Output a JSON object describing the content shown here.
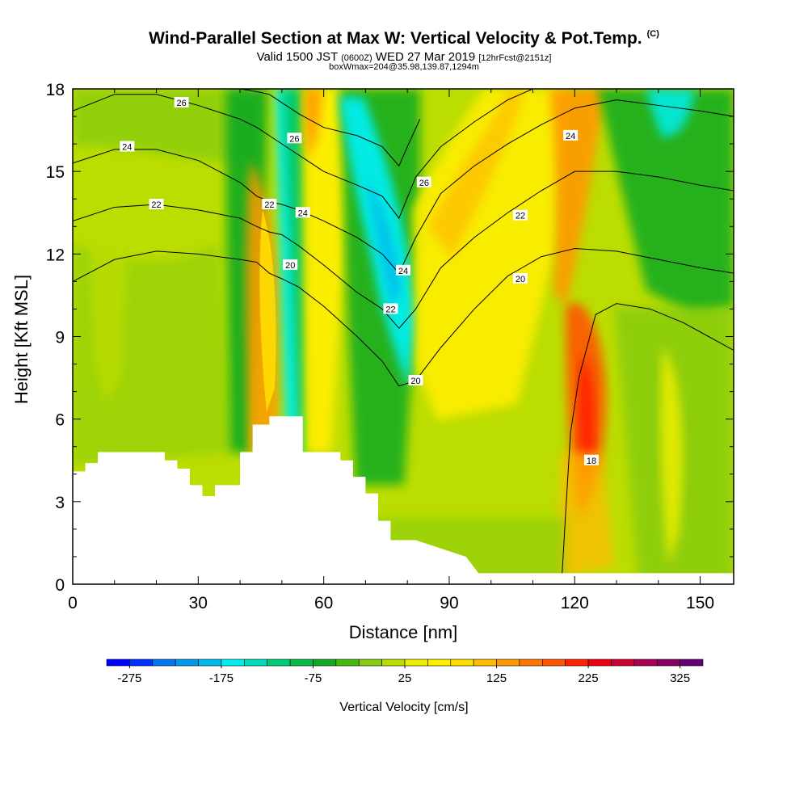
{
  "header": {
    "title": "Wind-Parallel Section at Max W: Vertical Velocity & Pot.Temp.",
    "copyright": "(C)",
    "valid_a": "Valid 1500 JST",
    "valid_z": "(0600Z)",
    "valid_b": "WED 27 Mar 2019",
    "forecast": "[12hrFcst@2151z]",
    "box_info": "boxWmax=204@35.98,139.87,1294m"
  },
  "chart_data": {
    "type": "heatmap",
    "xlabel": "Distance [nm]",
    "ylabel": "Height [Kft MSL]",
    "xlim": [
      0,
      158
    ],
    "ylim": [
      0,
      18
    ],
    "x_ticks": [
      0,
      30,
      60,
      90,
      120,
      150
    ],
    "y_ticks": [
      0,
      3,
      6,
      9,
      12,
      15,
      18
    ],
    "colorbar": {
      "title": "Vertical Velocity [cm/s]",
      "labels": [
        "-275",
        "-175",
        "-75",
        "25",
        "125",
        "225",
        "325"
      ],
      "label_values": [
        -275,
        -175,
        -75,
        25,
        125,
        225,
        325
      ],
      "range": [
        -300,
        350
      ],
      "step": 25,
      "colors": [
        "#0000ff",
        "#0033ff",
        "#0077ee",
        "#0099ee",
        "#00bbee",
        "#00eeee",
        "#00ddbb",
        "#00cc77",
        "#00bb44",
        "#11aa22",
        "#44bb11",
        "#88cc11",
        "#bbdd00",
        "#eeee00",
        "#ffee00",
        "#ffdd00",
        "#ffbb00",
        "#ff9900",
        "#ff7700",
        "#ff5500",
        "#ff2200",
        "#ee0011",
        "#cc0033",
        "#aa0055",
        "#880066",
        "#660077"
      ]
    },
    "terrain": {
      "x": [
        0,
        3,
        3,
        6,
        6,
        22,
        22,
        25,
        25,
        28,
        28,
        31,
        31,
        34,
        34,
        40,
        40,
        43,
        43,
        47,
        47,
        55,
        55,
        64,
        64,
        67,
        67,
        70,
        70,
        73,
        73,
        76,
        76,
        79,
        79,
        82,
        82,
        94,
        94,
        97,
        97,
        158
      ],
      "y": [
        4.1,
        4.1,
        4.4,
        4.4,
        4.8,
        4.8,
        4.5,
        4.5,
        4.2,
        4.2,
        3.6,
        3.6,
        3.2,
        3.2,
        3.6,
        3.6,
        4.8,
        4.8,
        5.8,
        5.8,
        6.1,
        6.1,
        4.8,
        4.8,
        4.5,
        4.5,
        3.9,
        3.9,
        3.3,
        3.3,
        2.3,
        2.3,
        1.6,
        1.6,
        1.6,
        1.6,
        1.6,
        1.0,
        1.0,
        0.4,
        0.4,
        0.4
      ]
    },
    "theta_contours": [
      {
        "label": "18",
        "x": [
          117,
          118,
          119,
          121,
          125,
          130,
          138,
          146,
          152,
          158
        ],
        "y": [
          0.4,
          3.0,
          5.5,
          7.5,
          9.8,
          10.2,
          10.0,
          9.5,
          9.0,
          8.5
        ],
        "label_x": 124,
        "label_y": 4.5
      },
      {
        "label": "20",
        "x": [
          0,
          10,
          20,
          30,
          40,
          44,
          47,
          50,
          54,
          60,
          68,
          74,
          78,
          82,
          88,
          96,
          104,
          112,
          120,
          130,
          140,
          150,
          158
        ],
        "y": [
          11.0,
          11.8,
          12.1,
          12.0,
          11.8,
          11.7,
          11.3,
          11.1,
          10.8,
          10.1,
          9.0,
          8.1,
          7.2,
          7.4,
          8.6,
          10.0,
          11.2,
          11.9,
          12.2,
          12.1,
          11.8,
          11.5,
          11.3
        ],
        "label_x": 82,
        "label_y": 7.4
      },
      {
        "label": "22",
        "x": [
          0,
          10,
          20,
          30,
          40,
          44,
          47,
          50,
          54,
          60,
          68,
          74,
          78,
          82,
          88,
          96,
          104,
          112,
          120,
          130,
          140,
          150,
          158
        ],
        "y": [
          13.2,
          13.7,
          13.8,
          13.6,
          13.3,
          13.0,
          12.8,
          12.7,
          12.3,
          11.6,
          10.6,
          10.0,
          9.3,
          10.0,
          11.5,
          12.6,
          13.5,
          14.3,
          15.0,
          15.0,
          14.8,
          14.5,
          14.3
        ],
        "label_x": 76,
        "label_y": 10.0
      },
      {
        "label": "24",
        "x": [
          0,
          10,
          20,
          30,
          40,
          44,
          47,
          50,
          54,
          60,
          68,
          74,
          78,
          82,
          88,
          96,
          104,
          112,
          120,
          130,
          140,
          150,
          158
        ],
        "y": [
          15.3,
          15.8,
          15.8,
          15.4,
          14.6,
          14.1,
          13.9,
          13.8,
          13.6,
          13.2,
          12.6,
          12.0,
          11.3,
          12.6,
          14.2,
          15.2,
          16.0,
          16.7,
          17.3,
          17.6,
          17.4,
          17.2,
          17.0
        ],
        "label_x": 79,
        "label_y": 11.4
      },
      {
        "label": "26",
        "x": [
          0,
          10,
          20,
          30,
          40,
          44,
          47,
          50,
          54,
          60,
          68,
          74,
          78,
          82,
          88,
          96,
          104,
          110,
          115
        ],
        "y": [
          17.2,
          17.8,
          17.8,
          17.4,
          16.9,
          16.6,
          16.3,
          16.0,
          15.6,
          15.0,
          14.5,
          14.1,
          13.3,
          14.8,
          15.9,
          16.8,
          17.6,
          18.0,
          18.2
        ],
        "label_x": 84,
        "label_y": 14.6
      },
      {
        "label": "",
        "x": [
          0,
          10,
          20,
          30,
          40,
          44,
          47,
          50,
          54,
          60,
          68,
          74,
          78,
          80,
          83
        ],
        "y": [
          18.0,
          18.5,
          18.5,
          18.2,
          18.0,
          17.9,
          17.8,
          17.5,
          17.1,
          16.6,
          16.3,
          15.9,
          15.2,
          15.9,
          16.9
        ],
        "label_x": null,
        "label_y": null
      }
    ],
    "extra_contour_labels": [
      {
        "label": "26",
        "x": 26,
        "y": 17.5
      },
      {
        "label": "24",
        "x": 13,
        "y": 15.9
      },
      {
        "label": "22",
        "x": 20,
        "y": 13.8
      },
      {
        "label": "26",
        "x": 53,
        "y": 16.2
      },
      {
        "label": "22",
        "x": 47,
        "y": 13.8
      },
      {
        "label": "24",
        "x": 55,
        "y": 13.5
      },
      {
        "label": "20",
        "x": 52,
        "y": 11.6
      },
      {
        "label": "24",
        "x": 119,
        "y": 16.3
      },
      {
        "label": "22",
        "x": 107,
        "y": 13.4
      },
      {
        "label": "20",
        "x": 107,
        "y": 11.1
      }
    ]
  }
}
